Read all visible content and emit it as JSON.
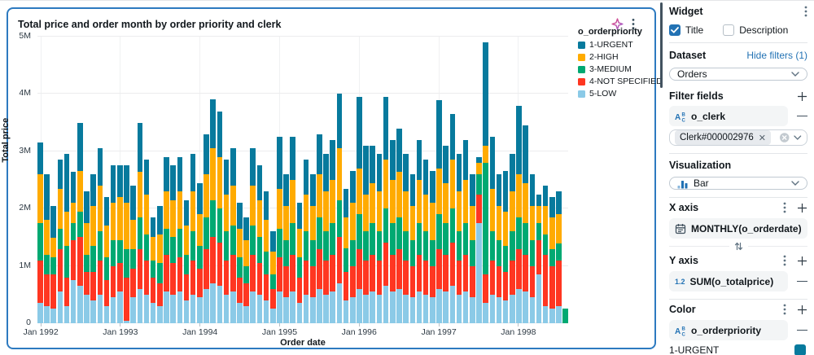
{
  "card": {
    "title": "Total price and order month by order priority and clerk"
  },
  "panel": {
    "widget_label": "Widget",
    "title_checkbox_label": "Title",
    "title_checkbox_checked": true,
    "description_checkbox_label": "Description",
    "description_checkbox_checked": false,
    "dataset_label": "Dataset",
    "hide_filters_link": "Hide filters (1)",
    "dataset_value": "Orders",
    "filter_fields_label": "Filter fields",
    "filter_field_name": "o_clerk",
    "filter_chip_value": "Clerk#000002976",
    "visualization_label": "Visualization",
    "visualization_value": "Bar",
    "x_axis_label": "X axis",
    "x_axis_field": "MONTHLY(o_orderdate)",
    "y_axis_label": "Y axis",
    "y_axis_field": "SUM(o_totalprice)",
    "numeric_type_icon_text": "1.2",
    "color_label": "Color",
    "color_field": "o_orderpriority",
    "first_color_item_label": "1-URGENT",
    "first_color_item_color": "#077A9D",
    "accent_color": "#2272B4"
  },
  "chart_data": {
    "type": "bar",
    "stacked": true,
    "title": "Total price and order month by order priority and clerk",
    "xlabel": "Order date",
    "ylabel": "Total price",
    "legend_title": "o_orderpriority",
    "legend_position": "right-top",
    "grid": true,
    "ylim_millions": [
      0,
      5
    ],
    "y_tick_labels": [
      "0",
      "1M",
      "2M",
      "3M",
      "4M",
      "5M"
    ],
    "x_tick_labels": [
      "Jan 1992",
      "Jan 1993",
      "Jan 1994",
      "Jan 1995",
      "Jan 1996",
      "Jan 1997",
      "Jan 1998"
    ],
    "x_interval": "month",
    "x_start": "1992-01",
    "x_end": "1998-08",
    "month_count": 80,
    "values_unit": "millions of total price",
    "stack_order_bottom_to_top": [
      "5-LOW",
      "4-NOT SPECIFIED",
      "3-MEDIUM",
      "2-HIGH",
      "1-URGENT"
    ],
    "series": [
      {
        "name": "1-URGENT",
        "color": "#077A9D",
        "values": [
          0.55,
          0.8,
          0.55,
          0.5,
          1.0,
          0.55,
          0.85,
          0.55,
          0.55,
          0.65,
          0.5,
          0.65,
          0.55,
          0.65,
          0.6,
          0.85,
          0.6,
          0.35,
          0.5,
          0.6,
          0.6,
          0.6,
          0.45,
          0.65,
          0.55,
          0.7,
          0.85,
          0.8,
          0.6,
          0.65,
          0.45,
          0.4,
          0.65,
          0.6,
          0.5,
          0.35,
          0.9,
          0.55,
          0.75,
          0.45,
          0.6,
          0.55,
          0.7,
          0.65,
          0.7,
          0.95,
          0.5,
          0.55,
          1.25,
          0.85,
          0.65,
          0.65,
          1.1,
          0.7,
          0.75,
          0.65,
          0.55,
          0.7,
          0.6,
          0.55,
          1.2,
          0.65,
          0.8,
          0.65,
          0.7,
          0.55,
          0.1,
          1.8,
          0.9,
          0.55,
          0.7,
          0.65,
          1.2,
          1.0,
          0.55,
          0.2,
          0.35,
          0.35,
          0.4,
          0.0
        ]
      },
      {
        "name": "2-HIGH",
        "color": "#FFAB00",
        "values": [
          0.85,
          0.6,
          0.35,
          0.7,
          0.6,
          0.35,
          0.7,
          0.55,
          0.7,
          0.8,
          0.55,
          0.65,
          0.75,
          0.8,
          0.5,
          0.8,
          0.7,
          0.4,
          0.5,
          0.65,
          0.65,
          0.65,
          0.5,
          0.7,
          0.55,
          0.75,
          0.9,
          0.9,
          0.65,
          0.7,
          0.5,
          0.45,
          0.7,
          0.65,
          0.55,
          0.4,
          0.7,
          0.6,
          0.75,
          0.5,
          0.65,
          0.6,
          0.75,
          0.7,
          0.75,
          0.9,
          0.55,
          0.65,
          0.8,
          0.65,
          0.7,
          0.7,
          0.85,
          0.75,
          0.8,
          0.7,
          0.6,
          0.75,
          0.65,
          0.65,
          0.8,
          0.7,
          0.85,
          0.7,
          0.75,
          0.6,
          0.2,
          0.3,
          0.75,
          0.6,
          0.6,
          0.7,
          0.75,
          0.7,
          0.6,
          0.3,
          0.5,
          0.55,
          0.5,
          0.0
        ]
      },
      {
        "name": "3-MEDIUM",
        "color": "#00A972",
        "values": [
          0.65,
          0.35,
          0.3,
          0.35,
          0.55,
          0.3,
          0.45,
          0.3,
          0.45,
          0.5,
          0.4,
          0.45,
          0.4,
          0.5,
          0.35,
          0.55,
          0.45,
          0.3,
          0.35,
          0.45,
          0.45,
          0.5,
          0.35,
          0.5,
          0.4,
          0.55,
          0.65,
          0.6,
          0.5,
          0.5,
          0.35,
          0.3,
          0.5,
          0.45,
          0.4,
          0.25,
          0.5,
          0.45,
          0.55,
          0.35,
          0.5,
          0.45,
          0.55,
          0.5,
          0.55,
          0.65,
          0.4,
          0.45,
          0.6,
          0.5,
          0.55,
          0.5,
          0.6,
          0.55,
          0.55,
          0.5,
          0.45,
          0.55,
          0.5,
          0.45,
          0.6,
          0.55,
          0.6,
          0.5,
          0.55,
          0.45,
          0.35,
          1.95,
          0.5,
          0.45,
          0.45,
          0.5,
          0.55,
          0.55,
          0.45,
          0.3,
          0.35,
          0.3,
          0.3,
          0.25
        ]
      },
      {
        "name": "4-NOT SPECIFIED",
        "color": "#FF3621",
        "values": [
          0.75,
          0.55,
          0.6,
          0.75,
          0.5,
          0.7,
          0.85,
          0.4,
          0.5,
          0.6,
          0.45,
          0.55,
          0.5,
          0.75,
          0.5,
          0.7,
          0.6,
          0.45,
          0.4,
          0.65,
          0.55,
          0.6,
          0.45,
          0.6,
          0.5,
          0.7,
          0.8,
          0.75,
          0.6,
          0.65,
          0.45,
          0.4,
          0.65,
          0.55,
          0.45,
          0.35,
          0.6,
          0.55,
          0.65,
          0.45,
          0.6,
          0.55,
          0.7,
          0.6,
          0.65,
          0.8,
          0.5,
          0.55,
          0.7,
          0.6,
          0.65,
          0.6,
          0.75,
          0.65,
          0.7,
          0.6,
          0.55,
          0.65,
          0.6,
          0.55,
          0.7,
          0.65,
          0.75,
          0.6,
          0.65,
          0.55,
          0.5,
          0.5,
          0.6,
          0.55,
          0.5,
          0.6,
          0.7,
          0.65,
          0.55,
          0.6,
          0.9,
          0.75,
          0.8,
          0.0
        ]
      },
      {
        "name": "5-LOW",
        "color": "#8BCAE7",
        "values": [
          0.35,
          0.3,
          0.25,
          0.55,
          0.3,
          0.75,
          0.65,
          0.5,
          0.4,
          0.5,
          0.3,
          0.45,
          0.55,
          0.05,
          0.45,
          0.6,
          0.5,
          0.35,
          0.3,
          0.55,
          0.5,
          0.55,
          0.4,
          0.5,
          0.45,
          0.6,
          0.7,
          0.65,
          0.5,
          0.55,
          0.35,
          0.3,
          0.55,
          0.5,
          0.4,
          0.25,
          0.55,
          0.45,
          0.55,
          0.35,
          0.5,
          0.45,
          0.6,
          0.5,
          0.55,
          0.7,
          0.4,
          0.45,
          0.6,
          0.5,
          0.55,
          0.5,
          0.65,
          0.55,
          0.6,
          0.5,
          0.45,
          0.55,
          0.5,
          0.45,
          0.6,
          0.55,
          0.65,
          0.5,
          0.55,
          0.45,
          1.75,
          0.35,
          0.5,
          0.45,
          0.4,
          0.5,
          0.6,
          0.55,
          0.45,
          0.85,
          0.3,
          0.25,
          0.3,
          0.0
        ]
      }
    ]
  }
}
